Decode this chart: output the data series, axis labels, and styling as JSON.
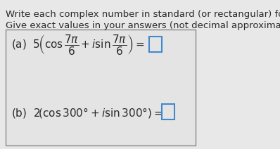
{
  "title_line1": "Write each complex number in standard (or rectangular) form.",
  "title_line2": "Give exact values in your answers (not decimal approximations).",
  "bg_color": "#e8e8e8",
  "box_facecolor": "#e0e0e0",
  "box_edgecolor": "#888888",
  "text_color": "#2a2a2a",
  "answer_box_color": "#4488cc",
  "title_fontsize": 9.5,
  "math_fontsize": 11.0
}
